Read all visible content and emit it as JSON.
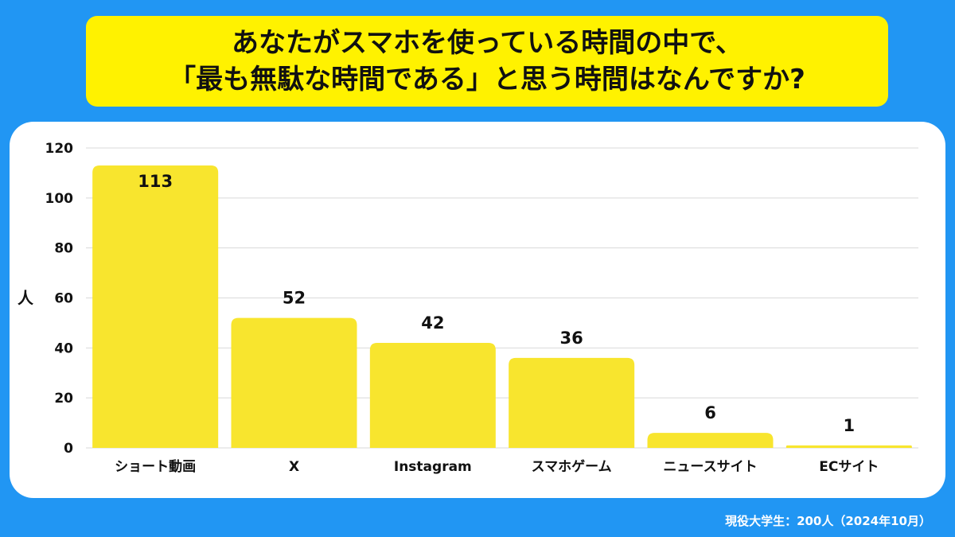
{
  "title": {
    "line1": "あなたがスマホを使っている時間の中で、",
    "line2": "「最も無駄な時間である」と思う時間はなんですか?"
  },
  "footnote": "現役大学生：200人（2024年10月）",
  "colors": {
    "background": "#2196F3",
    "title_bg": "#FFF200",
    "bar": "#F8E52E",
    "grid": "#D9D9D9"
  },
  "chart_data": {
    "type": "bar",
    "categories": [
      "ショート動画",
      "X",
      "Instagram",
      "スマホゲーム",
      "ニュースサイト",
      "ECサイト"
    ],
    "values": [
      113,
      52,
      42,
      36,
      6,
      1
    ],
    "ylabel": "人",
    "xlabel": "",
    "ylim": [
      0,
      120
    ],
    "yticks": [
      0,
      20,
      40,
      60,
      80,
      100,
      120
    ],
    "grid": true,
    "data_labels": true
  }
}
